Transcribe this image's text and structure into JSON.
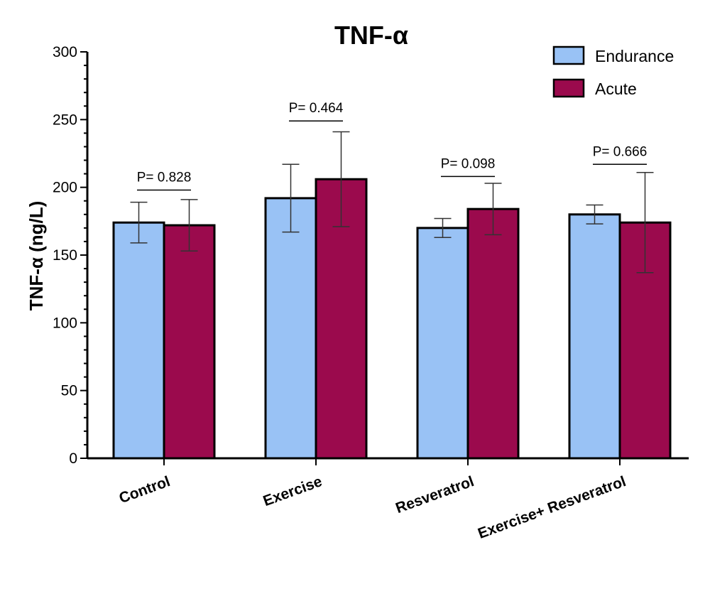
{
  "chart_data": {
    "type": "bar",
    "title": "TNF-α",
    "ylabel": "TNF-α  (ng/L)",
    "xlabel": "",
    "ylim": [
      0,
      300
    ],
    "yticks": [
      0,
      50,
      100,
      150,
      200,
      250,
      300
    ],
    "categories": [
      "Control",
      "Exercise",
      "Resveratrol",
      "Exercise+ Resveratrol"
    ],
    "series": [
      {
        "name": "Endurance",
        "color": "#99c2f5",
        "values": [
          174,
          192,
          170,
          180
        ],
        "errors": [
          15,
          25,
          7,
          7
        ]
      },
      {
        "name": "Acute",
        "color": "#9b0a4d",
        "values": [
          172,
          206,
          184,
          174
        ],
        "errors": [
          19,
          35,
          19,
          37
        ]
      }
    ],
    "annotations": [
      {
        "text": "P= 0.828",
        "category": 0,
        "y": 198
      },
      {
        "text": "P= 0.464",
        "category": 1,
        "y": 249
      },
      {
        "text": "P= 0.098",
        "category": 2,
        "y": 208
      },
      {
        "text": "P= 0.666",
        "category": 3,
        "y": 217
      }
    ],
    "legend_position": "top-right",
    "grid": false
  }
}
